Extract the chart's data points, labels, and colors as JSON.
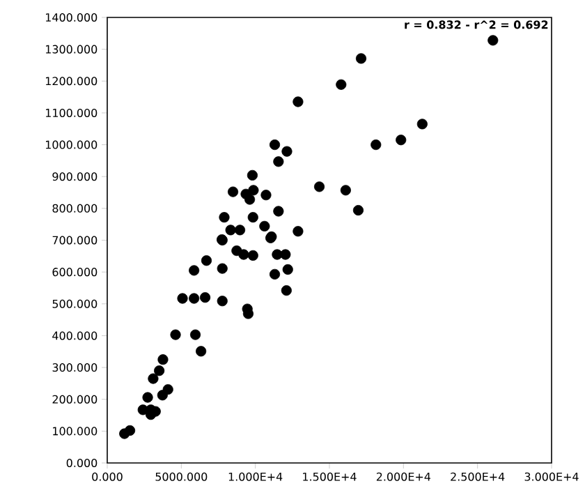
{
  "chart_data": {
    "type": "scatter",
    "marker": "circle",
    "color": "#000000",
    "annotations": [
      "r = 0.832 - r^2 = 0.692"
    ],
    "xlim": [
      0,
      30000
    ],
    "ylim": [
      0,
      1400
    ],
    "xticks": [
      {
        "value": 0,
        "label": "0.000"
      },
      {
        "value": 5000,
        "label": "5000.000"
      },
      {
        "value": 10000,
        "label": "1.000E+4"
      },
      {
        "value": 15000,
        "label": "1.500E+4"
      },
      {
        "value": 20000,
        "label": "2.000E+4"
      },
      {
        "value": 25000,
        "label": "2.500E+4"
      },
      {
        "value": 30000,
        "label": "3.000E+4"
      }
    ],
    "yticks": [
      {
        "value": 0,
        "label": "0.000"
      },
      {
        "value": 100,
        "label": "100.000"
      },
      {
        "value": 200,
        "label": "200.000"
      },
      {
        "value": 300,
        "label": "300.000"
      },
      {
        "value": 400,
        "label": "400.000"
      },
      {
        "value": 500,
        "label": "500.000"
      },
      {
        "value": 600,
        "label": "600.000"
      },
      {
        "value": 700,
        "label": "700.000"
      },
      {
        "value": 800,
        "label": "800.000"
      },
      {
        "value": 900,
        "label": "900.000"
      },
      {
        "value": 1000,
        "label": "1000.000"
      },
      {
        "value": 1100,
        "label": "1100.000"
      },
      {
        "value": 1200,
        "label": "1200.000"
      },
      {
        "value": 1300,
        "label": "1300.000"
      },
      {
        "value": 1400,
        "label": "1400.000"
      }
    ],
    "x": [
      1160,
      1530,
      2730,
      2410,
      2940,
      2940,
      3260,
      3100,
      3510,
      3760,
      3730,
      4100,
      4610,
      5950,
      6330,
      5080,
      5860,
      6610,
      5860,
      6700,
      7770,
      7770,
      7770,
      8740,
      9210,
      9840,
      9460,
      9520,
      11310,
      11470,
      12030,
      12190,
      12100,
      11090,
      11310,
      12130,
      11560,
      9800,
      8490,
      9360,
      9870,
      9620,
      10720,
      7900,
      9840,
      11560,
      8330,
      8960,
      10620,
      11030,
      7740,
      26040,
      17140,
      15790,
      12880,
      21270,
      19830,
      18140,
      14320,
      16100,
      16950,
      12880
    ],
    "values": [
      92,
      102,
      206,
      167,
      167,
      152,
      162,
      265,
      290,
      325,
      213,
      231,
      403,
      403,
      351,
      517,
      517,
      520,
      605,
      636,
      611,
      509,
      700,
      667,
      655,
      652,
      484,
      469,
      593,
      655,
      655,
      608,
      542,
      711,
      1000,
      979,
      947,
      904,
      852,
      845,
      857,
      828,
      842,
      772,
      772,
      791,
      732,
      732,
      744,
      707,
      702,
      1328,
      1271,
      1189,
      1135,
      1065,
      1015,
      1000,
      868,
      857,
      794,
      728
    ]
  }
}
